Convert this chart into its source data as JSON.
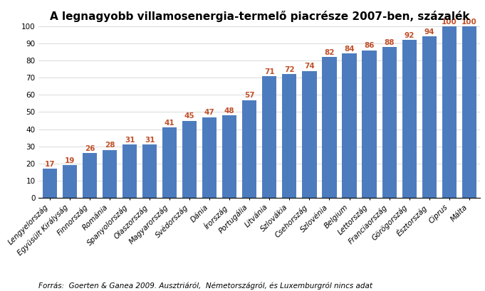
{
  "title": "A legnagyobb villamosenergia-termelő piacrésze 2007-ben, százalék",
  "footnote": "Forrás:  Goerten & Ganea 2009. Ausztriáról,  Németországról, és Luxemburgról nincs adat",
  "categories": [
    "Lengyelország",
    "Együsült Királyság",
    "Finnország",
    "Románia",
    "Spanyolország",
    "Olaszország",
    "Magyarország",
    "Svédország",
    "Dánia",
    "Írország",
    "Portugália",
    "Litvánia",
    "Szlovákia",
    "Csehország",
    "Szlovénia",
    "Belgium",
    "Lettország",
    "Franciaország",
    "Görögország",
    "Észtország",
    "Ciprus",
    "Málta"
  ],
  "values": [
    17,
    19,
    26,
    28,
    31,
    31,
    41,
    45,
    47,
    48,
    57,
    71,
    72,
    74,
    82,
    84,
    86,
    88,
    92,
    94,
    100,
    100
  ],
  "bar_color": "#4d7cbe",
  "value_color": "#c0502a",
  "ylim": [
    0,
    100
  ],
  "yticks": [
    0,
    10,
    20,
    30,
    40,
    50,
    60,
    70,
    80,
    90,
    100
  ],
  "title_fontsize": 11,
  "label_fontsize": 7.5,
  "value_fontsize": 7.5,
  "footnote_fontsize": 7.5,
  "background_color": "#ffffff"
}
